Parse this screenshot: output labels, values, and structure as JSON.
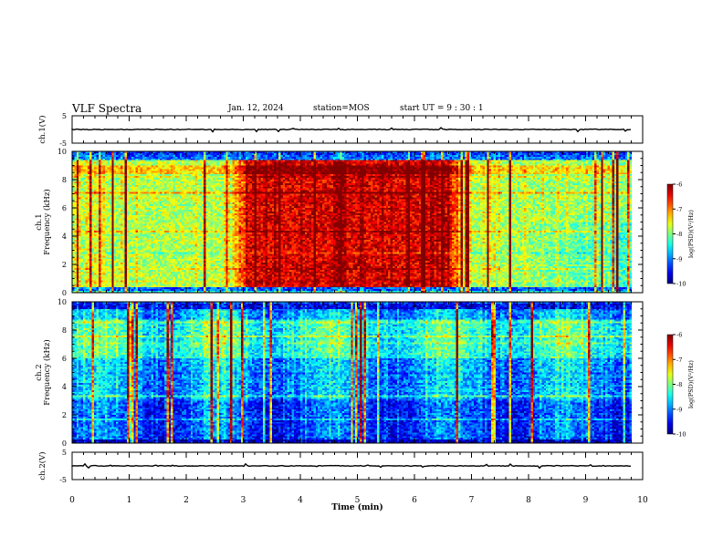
{
  "header": {
    "title": "VLF Spectra",
    "date": "Jan. 12, 2024",
    "station": "station=MOS",
    "start": "start UT =  9 : 30 : 1"
  },
  "colorbar": {
    "label": "log(PSD)(V²/Hz)",
    "ticks": [
      "-6",
      "-7",
      "-8",
      "-9",
      "-10"
    ]
  },
  "chart_data": [
    {
      "type": "line",
      "name": "ch1-waveform",
      "ylabel": "ch.1(V)",
      "ylim": [
        -5,
        5
      ],
      "yticks": [
        "5",
        "-5"
      ],
      "xlim": [
        0,
        10
      ],
      "level": 0
    },
    {
      "type": "heatmap",
      "name": "ch1-spectrogram",
      "ylabel": "ch.1\nFrequency (kHz)",
      "ylim": [
        0,
        10
      ],
      "yticks": [
        "0",
        "2",
        "4",
        "6",
        "8",
        "10"
      ],
      "xlim": [
        0,
        10
      ],
      "data_end_min": 9.8,
      "clim": [
        -10,
        -6
      ]
    },
    {
      "type": "heatmap",
      "name": "ch2-spectrogram",
      "ylabel": "ch.2\nFrequency (kHz)",
      "ylim": [
        0,
        10
      ],
      "yticks": [
        "0",
        "2",
        "4",
        "6",
        "8",
        "10"
      ],
      "xlim": [
        0,
        10
      ],
      "data_end_min": 9.8,
      "clim": [
        -10,
        -6
      ]
    },
    {
      "type": "line",
      "name": "ch2-waveform",
      "ylabel": "ch.2(V)",
      "ylim": [
        -5,
        5
      ],
      "yticks": [
        "5",
        "-5"
      ],
      "xlim": [
        0,
        10
      ],
      "level": 0
    }
  ],
  "xaxis": {
    "label": "Time (min)",
    "ticks": [
      "0",
      "1",
      "2",
      "3",
      "4",
      "5",
      "6",
      "7",
      "8",
      "9",
      "10"
    ]
  },
  "colors": {
    "background": "#ffffff",
    "axis": "#000000"
  }
}
